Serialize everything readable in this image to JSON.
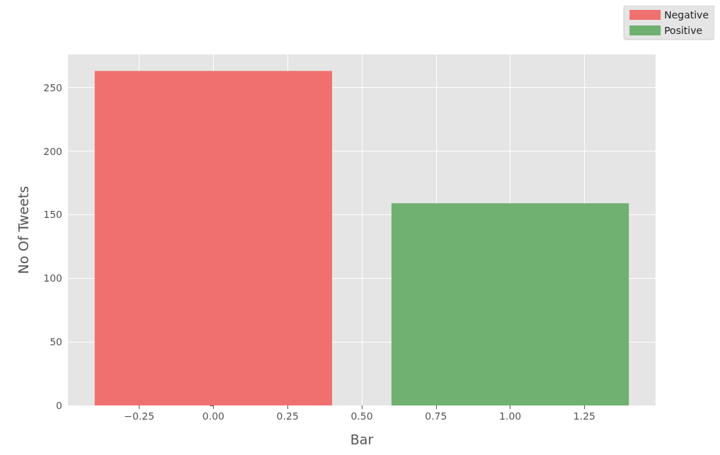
{
  "chart_data": {
    "type": "bar",
    "xlabel": "Bar",
    "ylabel": "No Of Tweets",
    "series": [
      {
        "name": "Negative",
        "color": "#f07070",
        "x": [
          0
        ],
        "values": [
          263
        ]
      },
      {
        "name": "Positive",
        "color": "#70b070",
        "x": [
          1
        ],
        "values": [
          159
        ]
      }
    ],
    "xlim": [
      -0.49,
      1.49
    ],
    "xticks": [
      {
        "value": -0.25,
        "label": "−0.25"
      },
      {
        "value": 0,
        "label": "0.00"
      },
      {
        "value": 0.25,
        "label": "0.25"
      },
      {
        "value": 0.5,
        "label": "0.50"
      },
      {
        "value": 0.75,
        "label": "0.75"
      },
      {
        "value": 1,
        "label": "1.00"
      },
      {
        "value": 1.25,
        "label": "1.25"
      }
    ],
    "ylim": [
      0,
      276
    ],
    "yticks": [
      0,
      50,
      100,
      150,
      200,
      250
    ],
    "grid": true,
    "legend": "top right"
  }
}
